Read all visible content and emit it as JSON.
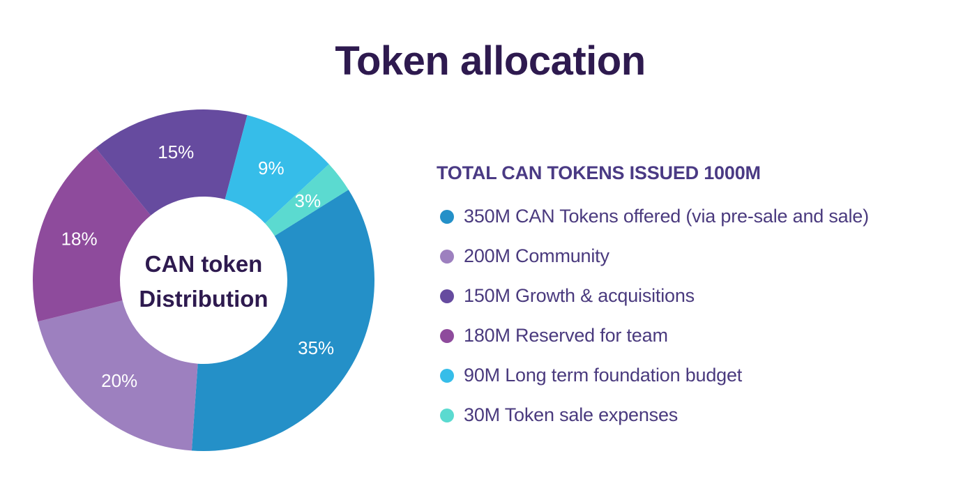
{
  "title": "Token allocation",
  "chart_data": {
    "type": "pie",
    "center_label": [
      "CAN token",
      "Distribution"
    ],
    "total_label": "TOTAL CAN TOKENS ISSUED 1000M",
    "slices": [
      {
        "label": "350M CAN Tokens offered (via pre-sale and sale)",
        "value": 350,
        "percent_label": "35%",
        "color": "#2490c8"
      },
      {
        "label": "200M Community",
        "value": 200,
        "percent_label": "20%",
        "color": "#9d80bf"
      },
      {
        "label": "180M Reserved for team",
        "value": 180,
        "percent_label": "18%",
        "color": "#8e4b9c"
      },
      {
        "label": "150M Growth & acquisitions",
        "value": 150,
        "percent_label": "15%",
        "color": "#664b9f"
      },
      {
        "label": "90M Long term foundation budget",
        "value": 90,
        "percent_label": "9%",
        "color": "#36bde9"
      },
      {
        "label": "30M Token sale expenses",
        "value": 30,
        "percent_label": "3%",
        "color": "#5bdad0"
      }
    ],
    "legend_order": [
      0,
      1,
      3,
      2,
      4,
      5
    ],
    "legend_placement": "right"
  }
}
